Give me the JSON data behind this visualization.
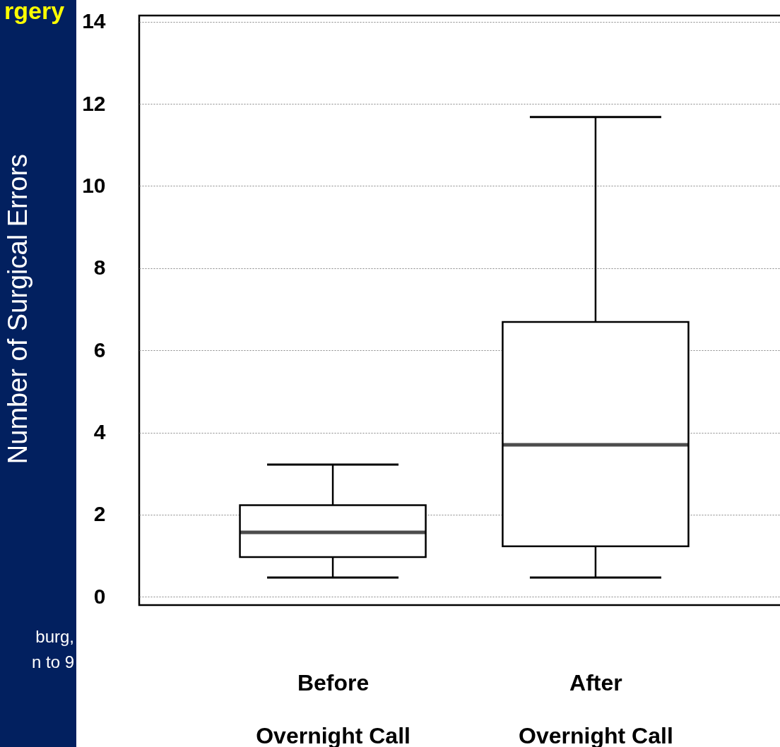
{
  "chart_data": {
    "type": "box",
    "title": "rgery",
    "ylabel": "Number of Surgical Errors",
    "categories": [
      "Before\nOvernight Call",
      "After\nOvernight Call"
    ],
    "boxes": [
      {
        "low": 0.47,
        "q1": 0.97,
        "median": 1.57,
        "q3": 2.23,
        "high": 3.22
      },
      {
        "low": 0.47,
        "q1": 1.23,
        "median": 3.7,
        "q3": 6.69,
        "high": 11.68
      }
    ],
    "ylim": [
      -0.2,
      14.15
    ],
    "yticks": [
      0,
      2,
      4,
      6,
      8,
      10,
      12,
      14
    ],
    "grid": "y",
    "annotations": [
      "burg,",
      "n to 9"
    ]
  }
}
